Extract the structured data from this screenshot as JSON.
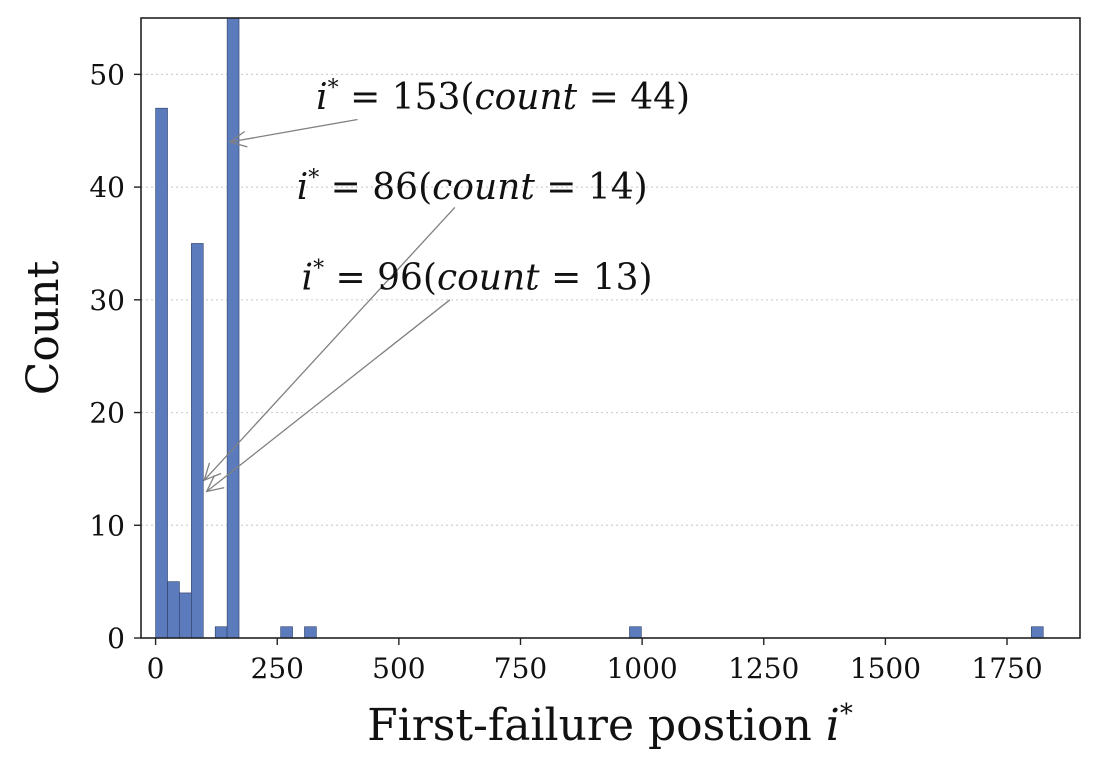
{
  "chart_data": {
    "type": "bar",
    "xlabel_text": "First-failure postion ",
    "xlabel_symbol": "i",
    "xlabel_sup": "*",
    "ylabel": "Count",
    "xlim": [
      -30,
      1900
    ],
    "ylim": [
      0,
      55
    ],
    "bin_width": 24.5,
    "bar_color": "#5b7bbd",
    "grid": "horizontal-dotted",
    "x_ticks": [
      0,
      250,
      500,
      750,
      1000,
      1250,
      1500,
      1750
    ],
    "y_ticks": [
      0,
      10,
      20,
      30,
      40,
      50
    ],
    "bins": [
      {
        "start": 0,
        "count": 47
      },
      {
        "start": 24.5,
        "count": 5
      },
      {
        "start": 49,
        "count": 4
      },
      {
        "start": 73.5,
        "count": 35
      },
      {
        "start": 122.5,
        "count": 1
      },
      {
        "start": 147,
        "count": 55
      },
      {
        "start": 257,
        "count": 1
      },
      {
        "start": 306,
        "count": 1
      },
      {
        "start": 974,
        "count": 1
      },
      {
        "start": 1800,
        "count": 1
      }
    ],
    "annotations": [
      {
        "symbol": "i",
        "sup": "*",
        "eq": " = 153(",
        "word": "count",
        "tail": " = 44)",
        "tx": 330,
        "ty": 48,
        "ax": 153,
        "ay": 44,
        "sx": 415,
        "sy": 46
      },
      {
        "symbol": "i",
        "sup": "*",
        "eq": " = 86(",
        "word": "count",
        "tail": " = 14)",
        "tx": 290,
        "ty": 40,
        "ax": 100,
        "ay": 14,
        "sx": 615,
        "sy": 38.2
      },
      {
        "symbol": "i",
        "sup": "*",
        "eq": " = 96(",
        "word": "count",
        "tail": " = 13)",
        "tx": 300,
        "ty": 32,
        "ax": 105,
        "ay": 13,
        "sx": 605,
        "sy": 30
      }
    ]
  }
}
